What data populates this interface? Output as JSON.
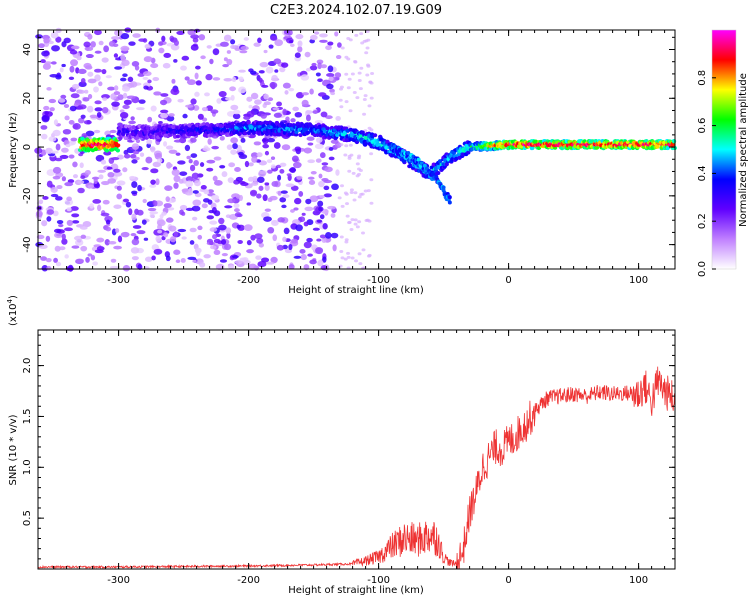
{
  "figure": {
    "title": "C2E3.2024.102.07.19.G09"
  },
  "chart_data": [
    {
      "type": "heatmap",
      "xlabel": "Height of straight line (km)",
      "ylabel": "Frequency (Hz)",
      "xlim": [
        -362,
        128
      ],
      "ylim": [
        -50,
        48
      ],
      "xticks": [
        -300,
        -200,
        -100,
        0,
        100
      ],
      "yticks": [
        -40,
        -20,
        0,
        20,
        40
      ],
      "grid": false,
      "colorbar": {
        "label": "Normalized spectral amplitude",
        "range": [
          0,
          1
        ],
        "ticks": [
          "0.0",
          "0.2",
          "0.4",
          "0.6",
          "0.8"
        ],
        "colors": [
          "#ffffff",
          "#c080ff",
          "#6000ff",
          "#0000ff",
          "#00ffff",
          "#00ff00",
          "#ffff00",
          "#ff0000",
          "#ff00ff"
        ]
      },
      "ridge": {
        "description_points": [
          {
            "x": -300,
            "y": 6,
            "amp": 0.3
          },
          {
            "x": -230,
            "y": 7,
            "amp": 0.35
          },
          {
            "x": -200,
            "y": 8,
            "amp": 0.45
          },
          {
            "x": -150,
            "y": 7,
            "amp": 0.45
          },
          {
            "x": -120,
            "y": 5,
            "amp": 0.5
          },
          {
            "x": -100,
            "y": 2,
            "amp": 0.55
          },
          {
            "x": -80,
            "y": -4,
            "amp": 0.5
          },
          {
            "x": -60,
            "y": -11,
            "amp": 0.5
          },
          {
            "x": -45,
            "y": -4,
            "amp": 0.5
          },
          {
            "x": -30,
            "y": 0,
            "amp": 0.6
          },
          {
            "x": 0,
            "y": 1,
            "amp": 0.95
          },
          {
            "x": 50,
            "y": 1,
            "amp": 0.95
          },
          {
            "x": 128,
            "y": 1,
            "amp": 0.95
          }
        ],
        "secondary_branch": [
          {
            "x": -90,
            "y": 0
          },
          {
            "x": -70,
            "y": -6
          },
          {
            "x": -55,
            "y": -14
          },
          {
            "x": -45,
            "y": -22
          }
        ]
      },
      "noise_region_x": [
        -362,
        -130
      ]
    },
    {
      "type": "line",
      "xlabel": "Height of straight line (km)",
      "ylabel": "SNR (10 * v/v)",
      "yscale_label": "(x10",
      "yscale_exp": "4",
      "yscale_close": ")",
      "xlim": [
        -362,
        128
      ],
      "ylim": [
        0,
        2.35
      ],
      "xticks": [
        -300,
        -200,
        -100,
        0,
        100
      ],
      "yticks": [
        0.5,
        1.0,
        1.5,
        2.0
      ],
      "ytick_labels": [
        "0.5",
        "1.0",
        "1.5",
        "2.0"
      ],
      "grid": false,
      "series_color": "#ee3333",
      "series": [
        {
          "x": [
            -362,
            -300,
            -200,
            -150,
            -120,
            -110,
            -100,
            -90,
            -80,
            -70,
            -60,
            -55,
            -50,
            -45,
            -40,
            -35,
            -30,
            -25,
            -20,
            -15,
            -10,
            -5,
            0,
            5,
            10,
            15,
            20,
            25,
            30,
            40,
            50,
            60,
            70,
            80,
            90,
            100,
            105,
            110,
            115,
            120,
            125,
            128
          ],
          "y": [
            0.02,
            0.02,
            0.03,
            0.04,
            0.05,
            0.08,
            0.12,
            0.22,
            0.3,
            0.28,
            0.34,
            0.3,
            0.12,
            0.06,
            0.05,
            0.18,
            0.55,
            0.75,
            1.0,
            1.1,
            1.2,
            1.18,
            1.25,
            1.3,
            1.38,
            1.45,
            1.55,
            1.62,
            1.68,
            1.7,
            1.72,
            1.7,
            1.74,
            1.72,
            1.73,
            1.72,
            1.8,
            1.65,
            1.85,
            1.75,
            1.7,
            1.65
          ]
        }
      ]
    }
  ]
}
